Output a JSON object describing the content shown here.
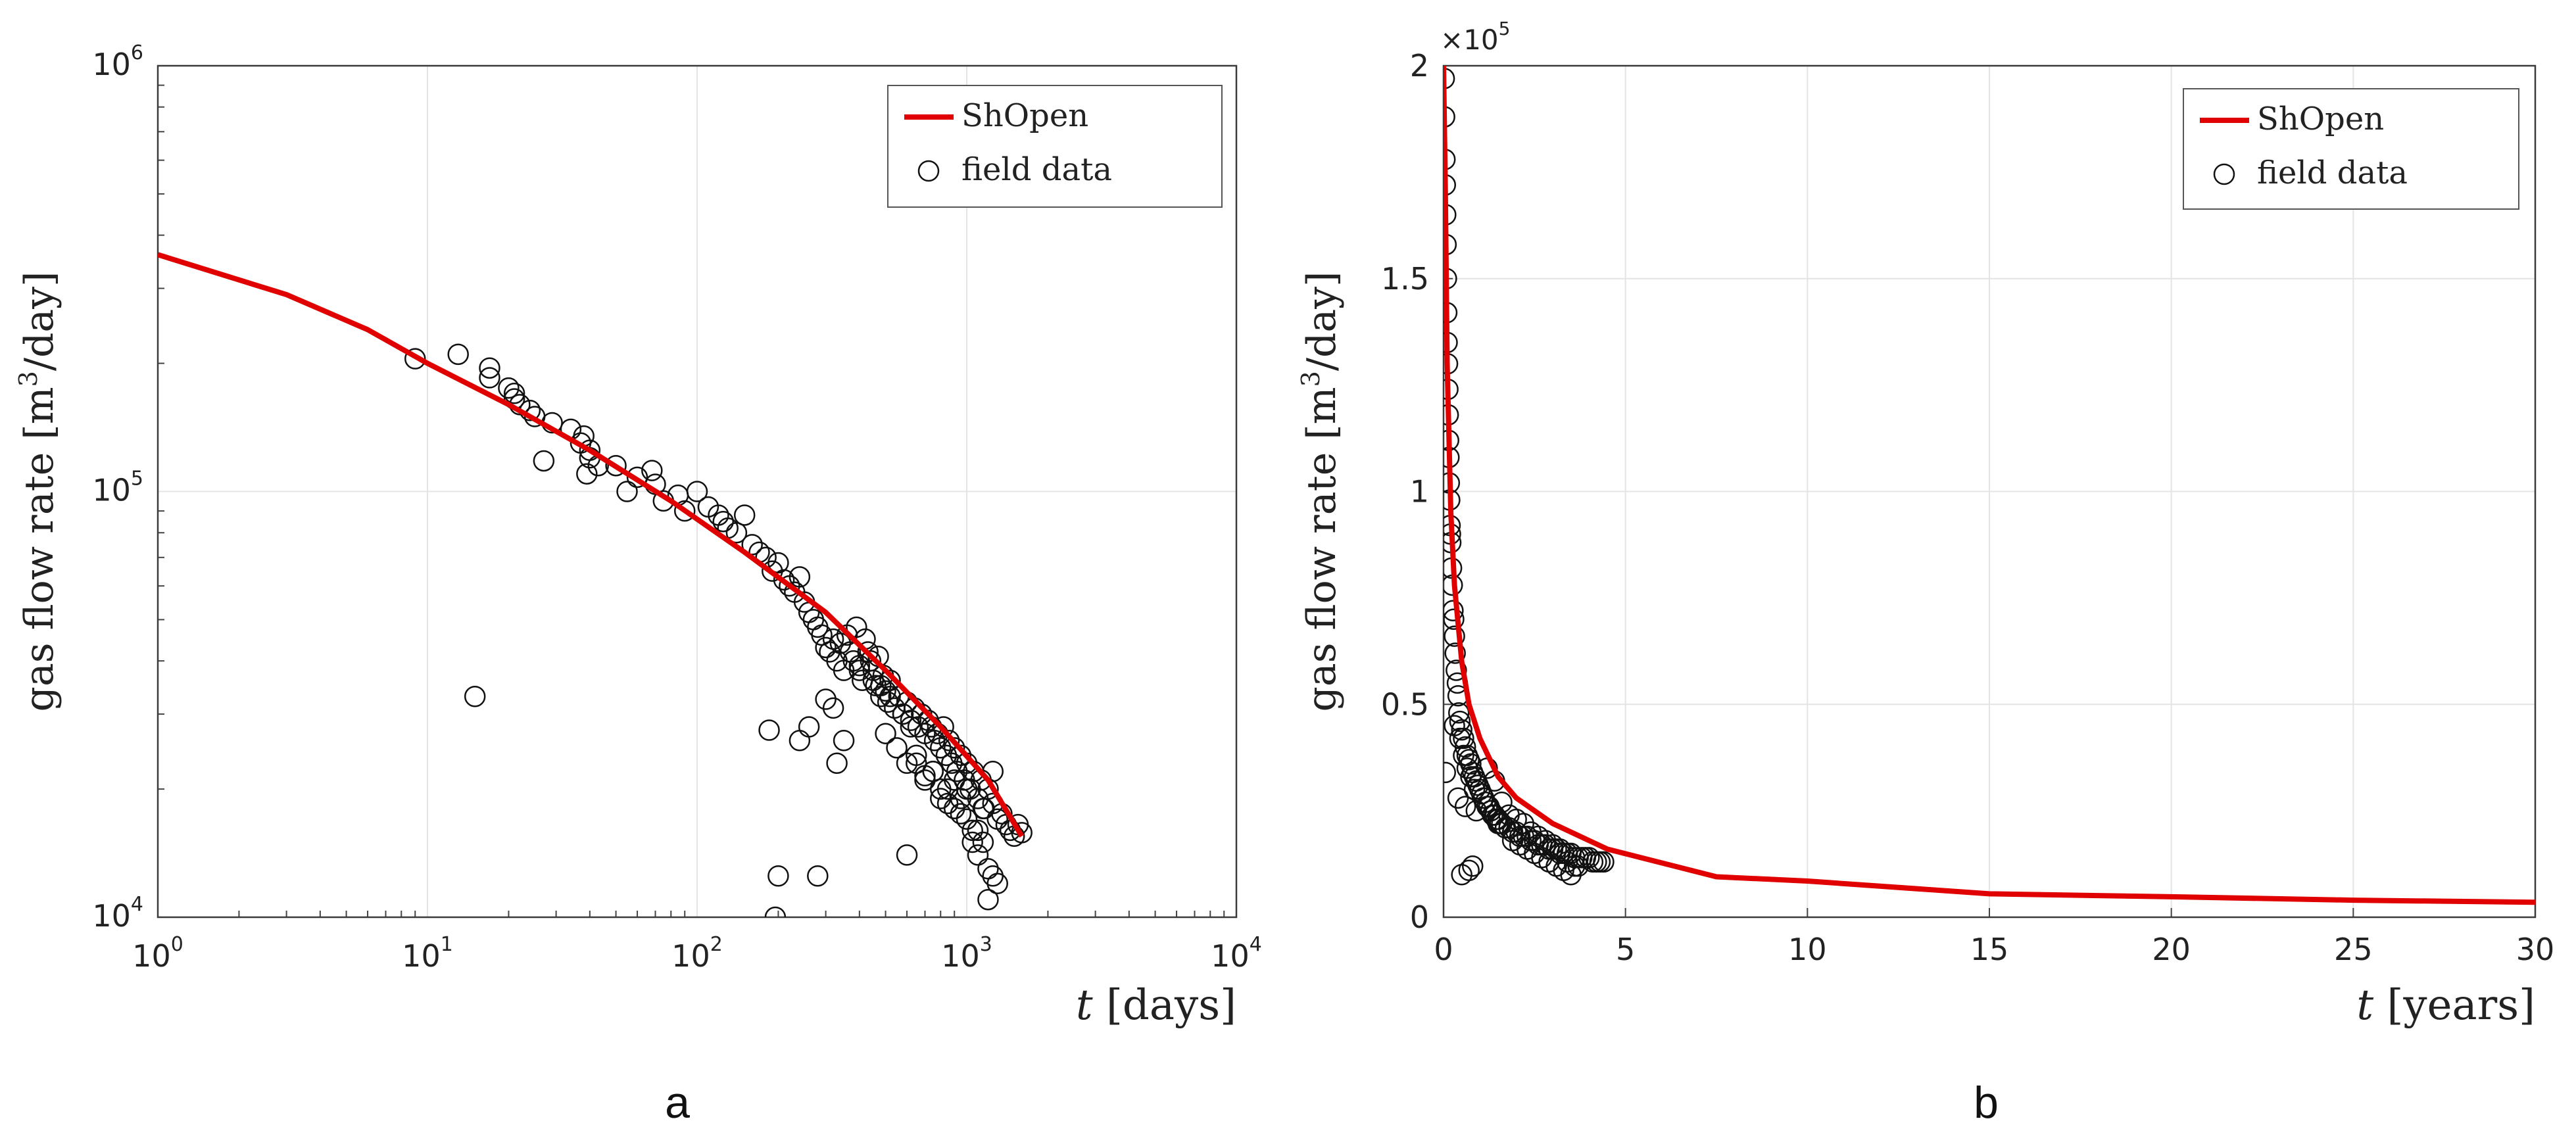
{
  "chart_data": [
    {
      "type": "scatter",
      "panel_label": "a",
      "x_scale": "log",
      "y_scale": "log",
      "xlim": [
        1,
        10000
      ],
      "ylim": [
        10000,
        1000000
      ],
      "xlabel": {
        "var": "t",
        "unit": "[days]"
      },
      "ylabel": {
        "pre": "gas flow rate [m",
        "sup": "3",
        "post": "/day]"
      },
      "x_ticks": [
        {
          "value": 1,
          "base": "10",
          "exp": "0"
        },
        {
          "value": 10,
          "base": "10",
          "exp": "1"
        },
        {
          "value": 100,
          "base": "10",
          "exp": "2"
        },
        {
          "value": 1000,
          "base": "10",
          "exp": "3"
        },
        {
          "value": 10000,
          "base": "10",
          "exp": "4"
        }
      ],
      "y_ticks": [
        {
          "value": 10000,
          "base": "10",
          "exp": "4"
        },
        {
          "value": 100000,
          "base": "10",
          "exp": "5"
        },
        {
          "value": 1000000,
          "base": "10",
          "exp": "6"
        }
      ],
      "grid": true,
      "legend_position": "top-right",
      "series": [
        {
          "name": "ShOpen",
          "kind": "line",
          "color": "#e00000",
          "x": [
            1,
            3,
            6,
            10,
            20,
            40,
            80,
            150,
            300,
            500,
            800,
            1200,
            1600
          ],
          "y": [
            360000,
            290000,
            240000,
            200000,
            160000,
            125000,
            95000,
            72000,
            52000,
            38000,
            28000,
            21000,
            15500
          ]
        },
        {
          "name": "field data",
          "kind": "scatter",
          "color": "#111111",
          "x": [
            9,
            13,
            15,
            17,
            17,
            20,
            21,
            21,
            22,
            24,
            25,
            27,
            29,
            34,
            37,
            38,
            39,
            40,
            40,
            43,
            50,
            55,
            60,
            68,
            70,
            75,
            85,
            90,
            100,
            110,
            120,
            125,
            130,
            140,
            150,
            160,
            170,
            180,
            190,
            200,
            210,
            220,
            230,
            240,
            250,
            260,
            270,
            280,
            290,
            300,
            310,
            320,
            330,
            340,
            350,
            360,
            370,
            380,
            390,
            400,
            410,
            420,
            430,
            440,
            450,
            460,
            470,
            480,
            490,
            500,
            510,
            520,
            540,
            560,
            580,
            600,
            620,
            640,
            660,
            680,
            700,
            720,
            740,
            760,
            780,
            800,
            820,
            840,
            860,
            880,
            900,
            920,
            950,
            980,
            1000,
            1030,
            1060,
            1100,
            1130,
            1160,
            1200,
            1250,
            1300,
            1350,
            1400,
            1450,
            1500,
            1550,
            1600,
            500,
            550,
            600,
            650,
            700,
            750,
            800,
            850,
            900,
            950,
            1000,
            1050,
            1100,
            1150,
            1200,
            1250,
            1300,
            1200,
            1150,
            1100,
            1250,
            1050,
            1000,
            950,
            900,
            850,
            800,
            750,
            700,
            650,
            600,
            400,
            450,
            480,
            520,
            580,
            620,
            350,
            330,
            320,
            300,
            280,
            260,
            240,
            200,
            195,
            185
          ],
          "y": [
            205000,
            210000,
            33000,
            195000,
            185000,
            175000,
            170000,
            165000,
            160000,
            155000,
            150000,
            118000,
            145000,
            140000,
            130000,
            135000,
            110000,
            125000,
            120000,
            115000,
            115000,
            100000,
            108000,
            112000,
            104000,
            95000,
            98000,
            90000,
            100000,
            92000,
            88000,
            85000,
            82000,
            80000,
            88000,
            75000,
            72000,
            70000,
            65000,
            68000,
            62000,
            60000,
            58000,
            63000,
            55000,
            52000,
            50000,
            48000,
            46000,
            43000,
            42000,
            45000,
            40000,
            44000,
            38000,
            46000,
            42000,
            40000,
            48000,
            39000,
            36000,
            45000,
            42000,
            40000,
            38000,
            35000,
            41000,
            33000,
            37000,
            34000,
            32000,
            36000,
            31000,
            33000,
            30000,
            32000,
            29000,
            31000,
            28000,
            30000,
            27000,
            29000,
            28000,
            26000,
            27000,
            25000,
            28000,
            24000,
            26000,
            23000,
            25000,
            22000,
            24000,
            21000,
            23000,
            20000,
            22000,
            19000,
            21000,
            18000,
            20000,
            18500,
            17000,
            17500,
            16500,
            16000,
            15500,
            16500,
            15800,
            27000,
            25000,
            23000,
            24000,
            21000,
            22000,
            19000,
            20000,
            18000,
            19000,
            17000,
            16000,
            14000,
            15000,
            13000,
            12500,
            12000,
            11000,
            18000,
            16000,
            22000,
            15000,
            20000,
            17500,
            21000,
            18500,
            20000,
            22000,
            21500,
            23000,
            14000,
            38000,
            36000,
            35000,
            33000,
            30000,
            28000,
            26000,
            23000,
            31000,
            32500,
            12500,
            28000,
            26000,
            12500,
            10000,
            27500
          ]
        }
      ]
    },
    {
      "type": "scatter",
      "panel_label": "b",
      "x_scale": "linear",
      "y_scale": "linear",
      "xlim": [
        0,
        30
      ],
      "ylim": [
        0,
        2
      ],
      "y_multiplier": {
        "prefix": "×10",
        "exp": "5"
      },
      "xlabel": {
        "var": "t",
        "unit": "[years]"
      },
      "ylabel": {
        "pre": "gas flow rate [m",
        "sup": "3",
        "post": "/day]"
      },
      "x_ticks": [
        "0",
        "5",
        "10",
        "15",
        "20",
        "25",
        "30"
      ],
      "y_ticks": [
        "0",
        "0.5",
        "1",
        "1.5",
        "2"
      ],
      "grid": true,
      "legend_position": "top-right",
      "series": [
        {
          "name": "ShOpen",
          "kind": "line",
          "color": "#e00000",
          "x": [
            0,
            0.05,
            0.1,
            0.2,
            0.3,
            0.5,
            0.7,
            1.0,
            1.5,
            2.0,
            3.0,
            4.5,
            7.5,
            10,
            15,
            20,
            25,
            30
          ],
          "y": [
            2.0,
            1.7,
            1.3,
            0.95,
            0.78,
            0.6,
            0.5,
            0.42,
            0.33,
            0.28,
            0.22,
            0.16,
            0.095,
            0.085,
            0.055,
            0.048,
            0.04,
            0.035
          ]
        },
        {
          "name": "field data",
          "kind": "scatter",
          "color": "#111111",
          "x": [
            0.02,
            0.03,
            0.04,
            0.05,
            0.06,
            0.07,
            0.08,
            0.09,
            0.1,
            0.11,
            0.12,
            0.13,
            0.14,
            0.15,
            0.16,
            0.17,
            0.18,
            0.19,
            0.2,
            0.22,
            0.24,
            0.26,
            0.28,
            0.3,
            0.32,
            0.35,
            0.38,
            0.4,
            0.42,
            0.45,
            0.5,
            0.55,
            0.6,
            0.65,
            0.7,
            0.75,
            0.8,
            0.85,
            0.9,
            0.95,
            1.0,
            1.05,
            1.1,
            1.15,
            1.2,
            1.25,
            1.3,
            1.35,
            1.4,
            1.45,
            1.5,
            1.55,
            1.6,
            1.7,
            1.8,
            1.9,
            2.0,
            2.1,
            2.2,
            2.3,
            2.4,
            2.5,
            2.6,
            2.7,
            2.8,
            2.9,
            3.0,
            3.1,
            3.2,
            3.3,
            3.4,
            3.5,
            3.6,
            3.7,
            3.8,
            3.9,
            4.0,
            4.1,
            4.2,
            4.3,
            4.4,
            0.05,
            0.4,
            0.5,
            0.6,
            0.7,
            0.8,
            0.9,
            1.0,
            1.2,
            1.4,
            1.6,
            1.8,
            2.0,
            2.2,
            2.4,
            2.6,
            2.8,
            3.0,
            3.2,
            3.4,
            3.6,
            0.3,
            0.45,
            0.55,
            0.65,
            0.75,
            0.85,
            1.1,
            1.3,
            1.5,
            1.7,
            1.9,
            2.1,
            2.3,
            2.5,
            2.7,
            2.9,
            3.1,
            3.3,
            3.5,
            3.7
          ],
          "y": [
            1.97,
            1.88,
            1.78,
            1.72,
            1.65,
            1.58,
            1.5,
            1.42,
            1.35,
            1.3,
            1.24,
            1.18,
            1.12,
            1.08,
            1.02,
            0.98,
            0.92,
            0.9,
            0.88,
            0.82,
            0.78,
            0.72,
            0.7,
            0.66,
            0.62,
            0.58,
            0.55,
            0.52,
            0.48,
            0.46,
            0.44,
            0.42,
            0.4,
            0.38,
            0.37,
            0.36,
            0.34,
            0.33,
            0.32,
            0.31,
            0.3,
            0.29,
            0.28,
            0.27,
            0.26,
            0.26,
            0.25,
            0.24,
            0.24,
            0.23,
            0.23,
            0.22,
            0.22,
            0.21,
            0.21,
            0.2,
            0.2,
            0.19,
            0.19,
            0.19,
            0.18,
            0.18,
            0.17,
            0.17,
            0.17,
            0.16,
            0.16,
            0.16,
            0.15,
            0.15,
            0.15,
            0.15,
            0.14,
            0.14,
            0.14,
            0.14,
            0.14,
            0.13,
            0.13,
            0.13,
            0.13,
            0.34,
            0.28,
            0.1,
            0.26,
            0.11,
            0.12,
            0.25,
            0.3,
            0.35,
            0.32,
            0.27,
            0.24,
            0.23,
            0.22,
            0.2,
            0.19,
            0.18,
            0.17,
            0.16,
            0.13,
            0.12,
            0.45,
            0.42,
            0.38,
            0.35,
            0.33,
            0.3,
            0.28,
            0.25,
            0.22,
            0.21,
            0.18,
            0.17,
            0.16,
            0.15,
            0.14,
            0.13,
            0.12,
            0.11,
            0.1,
            0.12
          ]
        }
      ]
    }
  ]
}
